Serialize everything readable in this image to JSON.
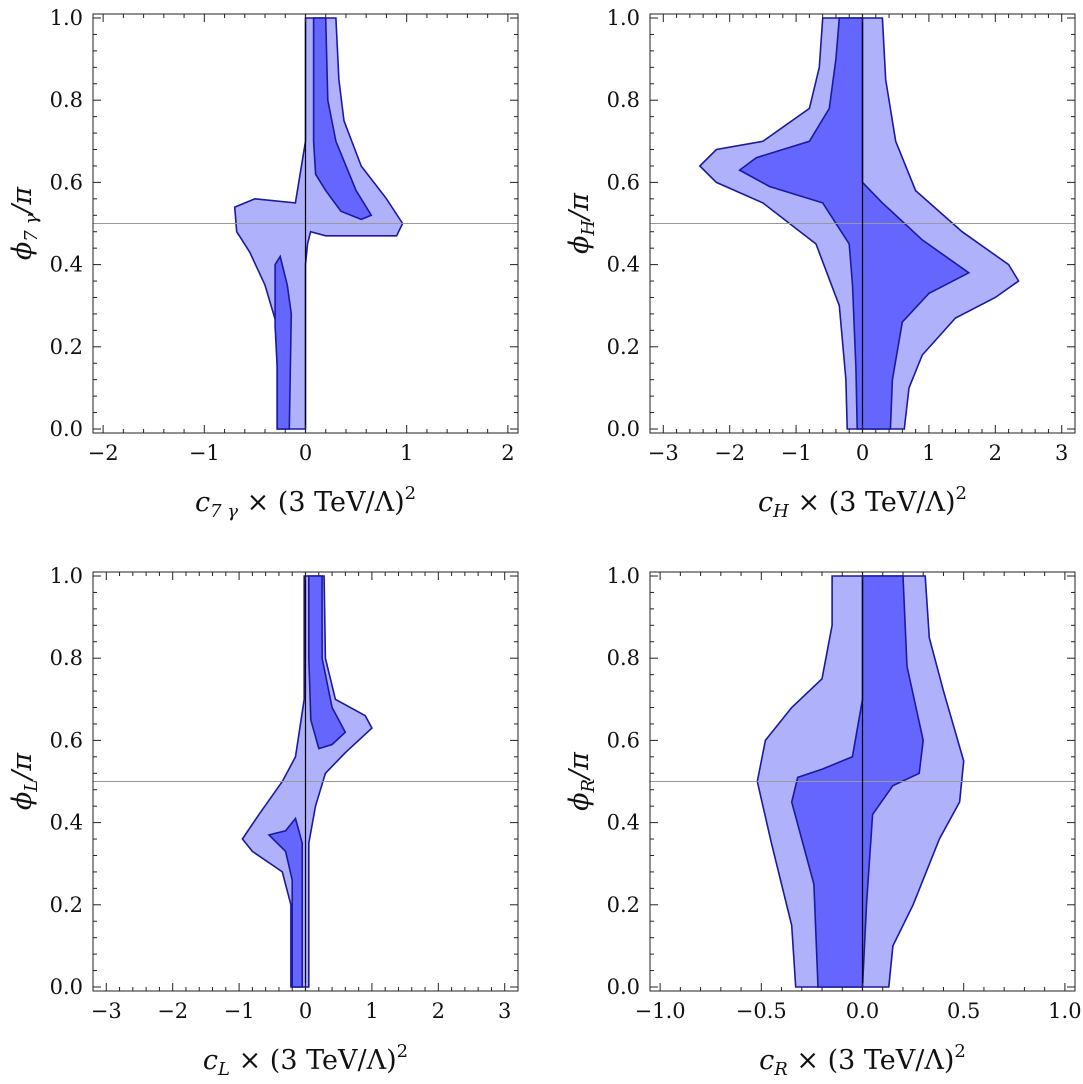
{
  "chart_data": [
    {
      "type": "contour",
      "id": "c7g",
      "xlim": [
        -2.1,
        2.1
      ],
      "ylim": [
        0,
        1
      ],
      "xticks": [
        -2,
        -1,
        0,
        1,
        2
      ],
      "xtick_labels": [
        "−2",
        "−1",
        "0",
        "1",
        "2"
      ],
      "yticks": [
        0,
        0.2,
        0.4,
        0.6,
        0.8,
        1.0
      ],
      "ytick_labels": [
        "0.0",
        "0.2",
        "0.4",
        "0.6",
        "0.8",
        "1.0"
      ],
      "xlabel": {
        "sym": "c",
        "sub": "7 γ",
        "rest": " × (3 TeV/Λ)",
        "sup": "2"
      },
      "ylabel": {
        "sym": "ϕ",
        "sub": "7 γ",
        "rest": "/π"
      },
      "ref_x": 0,
      "ref_y": 0.5,
      "outer_regions": [
        [
          [
            0.0,
            1.0
          ],
          [
            0.3,
            1.0
          ],
          [
            0.33,
            0.85
          ],
          [
            0.38,
            0.75
          ],
          [
            0.55,
            0.64
          ],
          [
            0.8,
            0.56
          ],
          [
            0.96,
            0.5
          ],
          [
            0.9,
            0.47
          ],
          [
            0.6,
            0.47
          ],
          [
            0.2,
            0.47
          ],
          [
            0.05,
            0.48
          ],
          [
            0.02,
            0.45
          ],
          [
            0.0,
            0.4
          ],
          [
            0.0,
            0.0
          ],
          [
            -0.28,
            0.0
          ],
          [
            -0.28,
            0.25
          ],
          [
            -0.4,
            0.35
          ],
          [
            -0.55,
            0.43
          ],
          [
            -0.68,
            0.48
          ],
          [
            -0.7,
            0.54
          ],
          [
            -0.5,
            0.56
          ],
          [
            -0.1,
            0.55
          ],
          [
            0.0,
            0.7
          ]
        ]
      ],
      "inner_regions": [
        [
          [
            0.08,
            1.0
          ],
          [
            0.2,
            1.0
          ],
          [
            0.22,
            0.8
          ],
          [
            0.3,
            0.7
          ],
          [
            0.5,
            0.58
          ],
          [
            0.65,
            0.52
          ],
          [
            0.55,
            0.51
          ],
          [
            0.35,
            0.53
          ],
          [
            0.2,
            0.58
          ],
          [
            0.1,
            0.62
          ],
          [
            0.08,
            0.7
          ]
        ],
        [
          [
            -0.28,
            0.0
          ],
          [
            -0.16,
            0.0
          ],
          [
            -0.14,
            0.28
          ],
          [
            -0.18,
            0.35
          ],
          [
            -0.25,
            0.42
          ],
          [
            -0.3,
            0.4
          ],
          [
            -0.3,
            0.25
          ],
          [
            -0.28,
            0.15
          ]
        ]
      ]
    },
    {
      "type": "contour",
      "id": "cH",
      "xlim": [
        -3.2,
        3.2
      ],
      "ylim": [
        0,
        1
      ],
      "xticks": [
        -3,
        -2,
        -1,
        0,
        1,
        2,
        3
      ],
      "xtick_labels": [
        "−3",
        "−2",
        "−1",
        "0",
        "1",
        "2",
        "3"
      ],
      "yticks": [
        0,
        0.2,
        0.4,
        0.6,
        0.8,
        1.0
      ],
      "ytick_labels": [
        "0.0",
        "0.2",
        "0.4",
        "0.6",
        "0.8",
        "1.0"
      ],
      "xlabel": {
        "sym": "c",
        "sub": "H",
        "rest": " × (3 TeV/Λ)",
        "sup": "2"
      },
      "ylabel": {
        "sym": "ϕ",
        "sub": "H",
        "rest": "/π"
      },
      "ref_x": 0,
      "ref_y": 0.5,
      "outer_regions": [
        [
          [
            -0.6,
            1.0
          ],
          [
            0.3,
            1.0
          ],
          [
            0.35,
            0.85
          ],
          [
            0.5,
            0.7
          ],
          [
            0.8,
            0.58
          ],
          [
            1.5,
            0.48
          ],
          [
            2.2,
            0.4
          ],
          [
            2.35,
            0.36
          ],
          [
            2.0,
            0.32
          ],
          [
            1.4,
            0.27
          ],
          [
            0.9,
            0.18
          ],
          [
            0.7,
            0.1
          ],
          [
            0.63,
            0.0
          ],
          [
            -0.23,
            0.0
          ],
          [
            -0.25,
            0.12
          ],
          [
            -0.35,
            0.3
          ],
          [
            -0.7,
            0.45
          ],
          [
            -1.5,
            0.55
          ],
          [
            -2.2,
            0.6
          ],
          [
            -2.45,
            0.64
          ],
          [
            -2.2,
            0.68
          ],
          [
            -1.5,
            0.7
          ],
          [
            -0.8,
            0.78
          ],
          [
            -0.65,
            0.88
          ]
        ]
      ],
      "inner_regions": [
        [
          [
            -0.35,
            1.0
          ],
          [
            0.0,
            1.0
          ],
          [
            0.0,
            0.72
          ],
          [
            0.0,
            0.6
          ],
          [
            0.3,
            0.55
          ],
          [
            0.9,
            0.46
          ],
          [
            1.6,
            0.38
          ],
          [
            1.0,
            0.33
          ],
          [
            0.6,
            0.26
          ],
          [
            0.45,
            0.12
          ],
          [
            0.42,
            0.0
          ],
          [
            -0.08,
            0.0
          ],
          [
            -0.1,
            0.15
          ],
          [
            -0.15,
            0.35
          ],
          [
            -0.2,
            0.45
          ],
          [
            -0.6,
            0.55
          ],
          [
            -1.4,
            0.59
          ],
          [
            -1.85,
            0.63
          ],
          [
            -1.6,
            0.66
          ],
          [
            -0.8,
            0.7
          ],
          [
            -0.5,
            0.78
          ],
          [
            -0.4,
            0.9
          ]
        ]
      ]
    },
    {
      "type": "contour",
      "id": "cL",
      "xlim": [
        -3.2,
        3.2
      ],
      "ylim": [
        0,
        1
      ],
      "xticks": [
        -3,
        -2,
        -1,
        0,
        1,
        2,
        3
      ],
      "xtick_labels": [
        "−3",
        "−2",
        "−1",
        "0",
        "1",
        "2",
        "3"
      ],
      "yticks": [
        0,
        0.2,
        0.4,
        0.6,
        0.8,
        1.0
      ],
      "ytick_labels": [
        "0.0",
        "0.2",
        "0.4",
        "0.6",
        "0.8",
        "1.0"
      ],
      "xlabel": {
        "sym": "c",
        "sub": "L",
        "rest": " × (3 TeV/Λ)",
        "sup": "2"
      },
      "ylabel": {
        "sym": "ϕ",
        "sub": "L",
        "rest": "/π"
      },
      "ref_x": 0,
      "ref_y": 0.5,
      "outer_regions": [
        [
          [
            -0.02,
            1.0
          ],
          [
            0.28,
            1.0
          ],
          [
            0.3,
            0.8
          ],
          [
            0.45,
            0.7
          ],
          [
            0.9,
            0.66
          ],
          [
            1.0,
            0.63
          ],
          [
            0.6,
            0.57
          ],
          [
            0.3,
            0.52
          ],
          [
            0.15,
            0.44
          ],
          [
            0.05,
            0.35
          ],
          [
            0.05,
            0.0
          ],
          [
            -0.22,
            0.0
          ],
          [
            -0.22,
            0.2
          ],
          [
            -0.35,
            0.28
          ],
          [
            -0.8,
            0.33
          ],
          [
            -0.95,
            0.36
          ],
          [
            -0.7,
            0.42
          ],
          [
            -0.35,
            0.5
          ],
          [
            -0.15,
            0.56
          ],
          [
            -0.02,
            0.7
          ]
        ]
      ],
      "inner_regions": [
        [
          [
            0.05,
            1.0
          ],
          [
            0.25,
            1.0
          ],
          [
            0.25,
            0.8
          ],
          [
            0.4,
            0.68
          ],
          [
            0.6,
            0.62
          ],
          [
            0.4,
            0.59
          ],
          [
            0.2,
            0.58
          ],
          [
            0.08,
            0.65
          ],
          [
            0.05,
            0.8
          ]
        ],
        [
          [
            -0.2,
            0.0
          ],
          [
            -0.05,
            0.0
          ],
          [
            -0.05,
            0.35
          ],
          [
            -0.15,
            0.41
          ],
          [
            -0.3,
            0.38
          ],
          [
            -0.55,
            0.37
          ],
          [
            -0.3,
            0.33
          ],
          [
            -0.2,
            0.26
          ]
        ]
      ]
    },
    {
      "type": "contour",
      "id": "cR",
      "xlim": [
        -1.05,
        1.05
      ],
      "ylim": [
        0,
        1
      ],
      "xticks": [
        -1.0,
        -0.5,
        0.0,
        0.5,
        1.0
      ],
      "xtick_labels": [
        "−1.0",
        "−0.5",
        "0.0",
        "0.5",
        "1.0"
      ],
      "yticks": [
        0,
        0.2,
        0.4,
        0.6,
        0.8,
        1.0
      ],
      "ytick_labels": [
        "0.0",
        "0.2",
        "0.4",
        "0.6",
        "0.8",
        "1.0"
      ],
      "xlabel": {
        "sym": "c",
        "sub": "R",
        "rest": " × (3 TeV/Λ)",
        "sup": "2"
      },
      "ylabel": {
        "sym": "ϕ",
        "sub": "R",
        "rest": "/π"
      },
      "ref_x": 0,
      "ref_y": 0.5,
      "outer_regions": [
        [
          [
            -0.15,
            1.0
          ],
          [
            0.31,
            1.0
          ],
          [
            0.33,
            0.85
          ],
          [
            0.4,
            0.72
          ],
          [
            0.5,
            0.55
          ],
          [
            0.48,
            0.45
          ],
          [
            0.38,
            0.36
          ],
          [
            0.25,
            0.2
          ],
          [
            0.15,
            0.1
          ],
          [
            0.13,
            0.0
          ],
          [
            -0.33,
            0.0
          ],
          [
            -0.35,
            0.15
          ],
          [
            -0.45,
            0.35
          ],
          [
            -0.52,
            0.5
          ],
          [
            -0.48,
            0.6
          ],
          [
            -0.35,
            0.68
          ],
          [
            -0.2,
            0.75
          ],
          [
            -0.15,
            0.88
          ]
        ]
      ],
      "inner_regions": [
        [
          [
            0.0,
            1.0
          ],
          [
            0.2,
            1.0
          ],
          [
            0.22,
            0.78
          ],
          [
            0.3,
            0.6
          ],
          [
            0.28,
            0.52
          ],
          [
            0.15,
            0.49
          ],
          [
            0.05,
            0.42
          ],
          [
            0.02,
            0.2
          ],
          [
            0.0,
            0.0
          ],
          [
            -0.22,
            0.0
          ],
          [
            -0.24,
            0.25
          ],
          [
            -0.35,
            0.45
          ],
          [
            -0.32,
            0.51
          ],
          [
            -0.2,
            0.53
          ],
          [
            -0.05,
            0.56
          ],
          [
            0.0,
            0.7
          ]
        ]
      ]
    }
  ]
}
